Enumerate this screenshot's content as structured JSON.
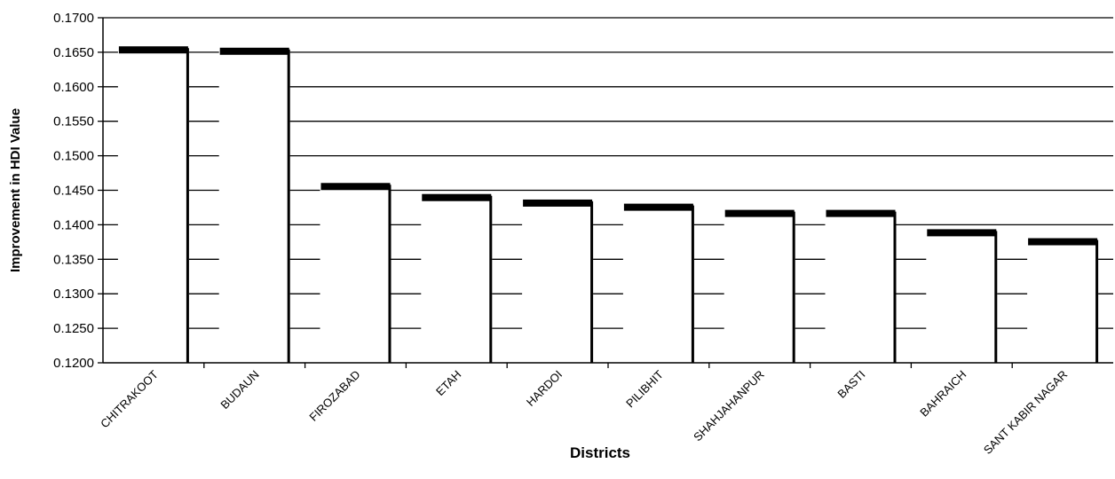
{
  "chart_data": {
    "type": "bar",
    "title": "",
    "xlabel": "Districts",
    "ylabel": "Improvement in HDI Value",
    "ylim": [
      0.12,
      0.17
    ],
    "y_ticks": [
      "0.1200",
      "0.1250",
      "0.1300",
      "0.1350",
      "0.1400",
      "0.1450",
      "0.1500",
      "0.1550",
      "0.1600",
      "0.1650",
      "0.1700"
    ],
    "categories": [
      "CHITRAKOOT",
      "BUDAUN",
      "FIROZABAD",
      "ETAH",
      "HARDOI",
      "PILIBHIT",
      "SHAHJAHANPUR",
      "BASTI",
      "BAHRAICH",
      "SANT KABIR NAGAR"
    ],
    "values": [
      0.1656,
      0.1654,
      0.1458,
      0.1442,
      0.1434,
      0.1428,
      0.1419,
      0.1419,
      0.1391,
      0.1378
    ],
    "grid": true,
    "legend": "none",
    "colors": {
      "bar_fill": "#ffffff",
      "bar_stroke": "#000000",
      "grid": "#000000"
    }
  }
}
